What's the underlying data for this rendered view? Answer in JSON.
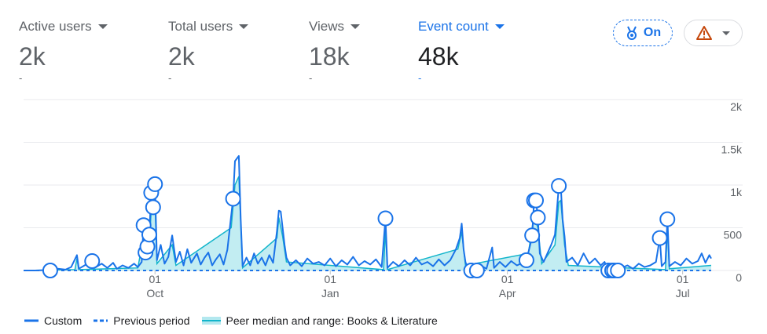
{
  "metrics": [
    {
      "label": "Active users",
      "value": "2k",
      "change": "-"
    },
    {
      "label": "Total users",
      "value": "2k",
      "change": "-"
    },
    {
      "label": "Views",
      "value": "18k",
      "change": "-"
    },
    {
      "label": "Event count",
      "value": "48k",
      "change": "-"
    }
  ],
  "controls": {
    "badge": "On"
  },
  "chart_data": {
    "type": "line",
    "grid": true,
    "legend": "bottom-left",
    "ylim": [
      0,
      2000
    ],
    "yticks": [
      0,
      500,
      {
        "value": 1000,
        "label": "1k"
      },
      {
        "value": 1500,
        "label": "1.5k"
      },
      {
        "value": 2000,
        "label": "2k"
      }
    ],
    "xlim": [
      0,
      361
    ],
    "xticks": [
      {
        "value": 69,
        "label": "01\nOct"
      },
      {
        "value": 161,
        "label": "01\nJan"
      },
      {
        "value": 254,
        "label": "01\nApr"
      },
      {
        "value": 346,
        "label": "01\nJul"
      }
    ],
    "series": [
      {
        "name": "Peer median and range: Books & Literature",
        "style": "area",
        "color": "#12b5cb",
        "fill": "#b3e8ef",
        "x": [
          0,
          27,
          28,
          29,
          60,
          63,
          66,
          67,
          69,
          70,
          78,
          80,
          109,
          111,
          113,
          115,
          133,
          134,
          136,
          138,
          189,
          190,
          191,
          228,
          230,
          232,
          265,
          268,
          270,
          272,
          279,
          281,
          282,
          284,
          286,
          337,
          338,
          339,
          361
        ],
        "values": [
          0,
          10,
          140,
          10,
          30,
          400,
          300,
          700,
          800,
          80,
          300,
          60,
          500,
          1000,
          1100,
          30,
          380,
          620,
          400,
          100,
          10,
          480,
          10,
          250,
          450,
          60,
          200,
          650,
          500,
          80,
          300,
          800,
          820,
          300,
          60,
          10,
          480,
          20,
          60
        ]
      },
      {
        "name": "Previous period",
        "style": "dashed",
        "color": "#1a73e8",
        "x": [
          0,
          361
        ],
        "values": [
          0,
          0
        ]
      },
      {
        "name": "Custom",
        "style": "solid",
        "color": "#1a73e8",
        "x": [
          0,
          6,
          12,
          14,
          18,
          22,
          25,
          28,
          29,
          32,
          36,
          38,
          41,
          44,
          47,
          49,
          52,
          55,
          58,
          60,
          62,
          63,
          64,
          65,
          66,
          67,
          68,
          69,
          70,
          72,
          74,
          76,
          78,
          80,
          82,
          84,
          86,
          88,
          91,
          93,
          95,
          97,
          99,
          101,
          103,
          105,
          107,
          110,
          111,
          113,
          114,
          115,
          117,
          119,
          121,
          123,
          125,
          127,
          129,
          131,
          133,
          134,
          135,
          136,
          137,
          138,
          140,
          143,
          146,
          149,
          152,
          155,
          158,
          161,
          164,
          167,
          170,
          173,
          176,
          179,
          182,
          185,
          188,
          190,
          191,
          194,
          197,
          200,
          203,
          206,
          209,
          212,
          215,
          218,
          221,
          224,
          227,
          229,
          230,
          231,
          232,
          233,
          235,
          238,
          240,
          243,
          246,
          247,
          250,
          253,
          256,
          259,
          262,
          264,
          266,
          267,
          268,
          269,
          270,
          271,
          273,
          275,
          277,
          279,
          281,
          282,
          283,
          284,
          285,
          288,
          291,
          294,
          297,
          300,
          303,
          305,
          307,
          309,
          310,
          312,
          314,
          317,
          320,
          323,
          326,
          329,
          332,
          334,
          335,
          337,
          338,
          339,
          342,
          345,
          348,
          351,
          354,
          356,
          358,
          360,
          361
        ],
        "values": [
          0,
          0,
          5,
          0,
          20,
          10,
          40,
          180,
          20,
          60,
          110,
          40,
          80,
          30,
          90,
          20,
          60,
          30,
          80,
          40,
          100,
          530,
          210,
          280,
          420,
          910,
          740,
          1010,
          120,
          300,
          80,
          160,
          410,
          100,
          220,
          60,
          250,
          90,
          200,
          70,
          150,
          210,
          60,
          130,
          190,
          70,
          240,
          840,
          1280,
          1340,
          600,
          50,
          150,
          60,
          200,
          80,
          150,
          60,
          180,
          90,
          460,
          700,
          690,
          500,
          300,
          150,
          60,
          120,
          50,
          140,
          80,
          100,
          60,
          140,
          50,
          120,
          70,
          160,
          60,
          110,
          70,
          130,
          40,
          610,
          30,
          100,
          50,
          120,
          60,
          150,
          70,
          100,
          50,
          130,
          60,
          120,
          250,
          380,
          550,
          250,
          100,
          30,
          0,
          0,
          60,
          20,
          270,
          30,
          100,
          40,
          110,
          60,
          90,
          120,
          300,
          410,
          820,
          820,
          620,
          200,
          100,
          200,
          300,
          420,
          990,
          1000,
          600,
          400,
          100,
          150,
          60,
          200,
          80,
          140,
          60,
          100,
          0,
          0,
          0,
          0,
          30,
          60,
          20,
          80,
          40,
          60,
          100,
          380,
          50,
          100,
          600,
          50,
          100,
          60,
          140,
          80,
          110,
          200,
          90,
          180,
          140
        ]
      }
    ],
    "anomalies": {
      "x": [
        14,
        36,
        63,
        64,
        65,
        66,
        67,
        68,
        69,
        110,
        190,
        235,
        238,
        264,
        267,
        268,
        269,
        270,
        281,
        307,
        309,
        310,
        312,
        334,
        338
      ],
      "values": [
        0,
        110,
        530,
        210,
        280,
        420,
        910,
        740,
        1010,
        840,
        610,
        0,
        0,
        120,
        410,
        820,
        820,
        620,
        990,
        0,
        0,
        0,
        0,
        380,
        600
      ]
    }
  }
}
